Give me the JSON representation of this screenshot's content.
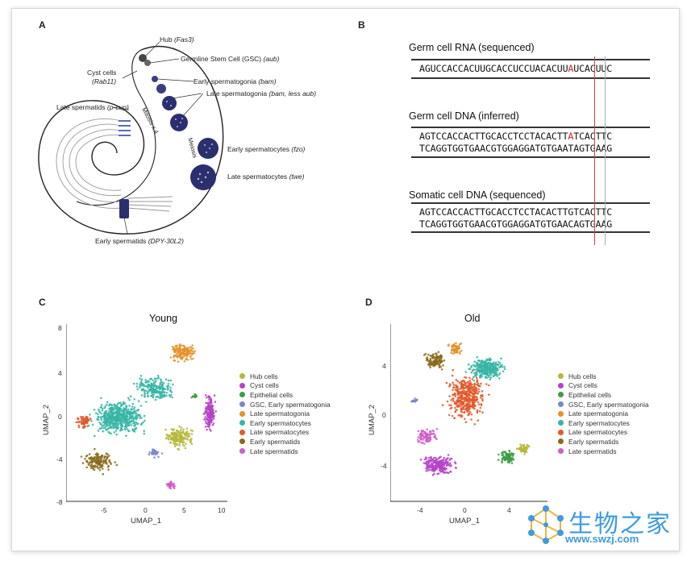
{
  "panels": {
    "a": {
      "letter": "A",
      "labels": {
        "hub": "Hub",
        "hub_gene": "(Fas3)",
        "gsc": "Germline Stem Cell (GSC)",
        "gsc_gene": "(aub)",
        "cyst": "Cyst cells",
        "cyst_gene": "(Rab11)",
        "early_sg": "Early spermatogonia",
        "early_sg_gene": "(bam)",
        "late_sg": "Late spermatogonia",
        "late_sg_gene": "(bam, less aub)",
        "mitosis": "Mitosis x 4",
        "late_spermatids": "Late spermatids",
        "late_spermatids_gene": "(p-cup)",
        "meiosis": "Meiosis",
        "early_sc": "Early spermatocytes",
        "early_sc_gene": "(fzo)",
        "late_sc": "Late spermatocytes",
        "late_sc_gene": "(twe)",
        "early_spermatids": "Early spermatids",
        "early_spermatids_gene": "(DPY-30L2)"
      }
    },
    "b": {
      "letter": "B",
      "rna_title": "Germ cell RNA (sequenced)",
      "rna_pre": "AGUCCACCACUUGCACCUCCUACACUU",
      "rna_hl": "A",
      "rna_post": "UCACUUC",
      "dna_title": "Germ cell DNA (inferred)",
      "dna1_pre": "AGTCCACCACTTGCACCTCCTACACTT",
      "dna1_hl": "A",
      "dna1_post": "TCACTTC",
      "dna2_pre": "TCAGGTGGTGAACGTGGAGGATGTGAA",
      "dna2_hl": "T",
      "dna2_post": "AGTGAAG",
      "som_title": "Somatic cell DNA (sequenced)",
      "som1": "AGTCCACCACTTGCACCTCCTACACTTGTCACTTC",
      "som2": "TCAGGTGGTGAACGTGGAGGATGTGAACAGTGAAG"
    },
    "c": {
      "letter": "C",
      "title": "Young",
      "xlabel": "UMAP_1",
      "ylabel": "UMAP_2",
      "xticks": [
        "-5",
        "0",
        "5",
        "10"
      ],
      "yticks": [
        "8",
        "4",
        "0",
        "-4",
        "-8"
      ]
    },
    "d": {
      "letter": "D",
      "title": "Old",
      "xlabel": "UMAP_1",
      "ylabel": "UMAP_2",
      "xticks": [
        "-4",
        "0",
        "4"
      ],
      "yticks": [
        "4",
        "0",
        "-4"
      ]
    }
  },
  "legend": [
    {
      "label": "Hub cells",
      "color": "#b5b83c"
    },
    {
      "label": "Cyst cells",
      "color": "#b543c6"
    },
    {
      "label": "Epithelial cells",
      "color": "#3f9b44"
    },
    {
      "label": "GSC, Early spermatogonia",
      "color": "#7a86c8"
    },
    {
      "label": "Late spermatogonia",
      "color": "#e3922a"
    },
    {
      "label": "Early spermatocytes",
      "color": "#36b5a4"
    },
    {
      "label": "Late spermatocytes",
      "color": "#e0592b"
    },
    {
      "label": "Early spermatids",
      "color": "#8a6a1c"
    },
    {
      "label": "Late spermatids",
      "color": "#d05cc8"
    }
  ],
  "watermark": {
    "cn": "生物之家",
    "url": "www.swzj.com"
  },
  "colors": {
    "cell_dark": "#2b2f6e",
    "accent_red": "#cc2222",
    "watermark": "#3d9be0"
  }
}
